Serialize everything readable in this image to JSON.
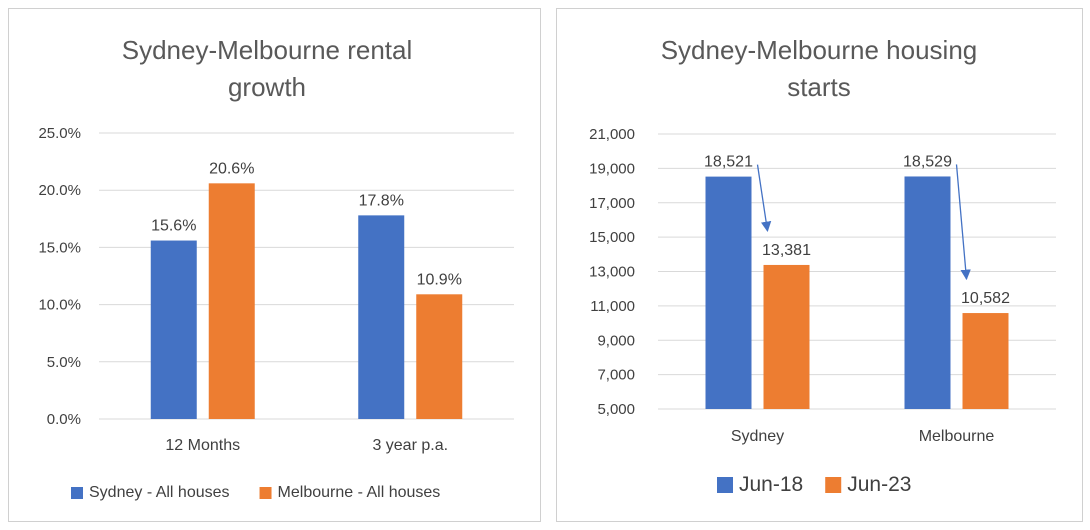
{
  "chart_data": [
    {
      "type": "bar",
      "title_lines": [
        "Sydney-Melbourne rental",
        "growth"
      ],
      "categories": [
        "12 Months",
        "3 year p.a."
      ],
      "series": [
        {
          "name": "Sydney - All houses",
          "values": [
            15.6,
            17.8
          ],
          "labels": [
            "15.6%",
            "17.8%"
          ],
          "color": "#4472C4"
        },
        {
          "name": "Melbourne - All houses",
          "values": [
            20.6,
            10.9
          ],
          "labels": [
            "20.6%",
            "10.9%"
          ],
          "color": "#ED7D31"
        }
      ],
      "ylim": [
        0,
        25
      ],
      "yticks": [
        0,
        5,
        10,
        15,
        20,
        25
      ],
      "ytick_labels": [
        "0.0%",
        "5.0%",
        "10.0%",
        "15.0%",
        "20.0%",
        "25.0%"
      ],
      "grid": true,
      "legend": "bottom"
    },
    {
      "type": "bar",
      "title_lines": [
        "Sydney-Melbourne housing",
        "starts"
      ],
      "categories": [
        "Sydney",
        "Melbourne"
      ],
      "series": [
        {
          "name": "Jun-18",
          "values": [
            18521,
            18529
          ],
          "labels": [
            "18,521",
            "18,529"
          ],
          "color": "#4472C4"
        },
        {
          "name": "Jun-23",
          "values": [
            13381,
            10582
          ],
          "labels": [
            "13,381",
            "10,582"
          ],
          "color": "#ED7D31"
        }
      ],
      "ylim": [
        5000,
        21000
      ],
      "yticks": [
        5000,
        7000,
        9000,
        11000,
        13000,
        15000,
        17000,
        19000,
        21000
      ],
      "ytick_labels": [
        "5,000",
        "7,000",
        "9,000",
        "11,000",
        "13,000",
        "15,000",
        "17,000",
        "19,000",
        "21,000"
      ],
      "grid": true,
      "legend": "bottom",
      "annotations": "arrows from Jun-18 label to Jun-23 bar in each category"
    }
  ]
}
